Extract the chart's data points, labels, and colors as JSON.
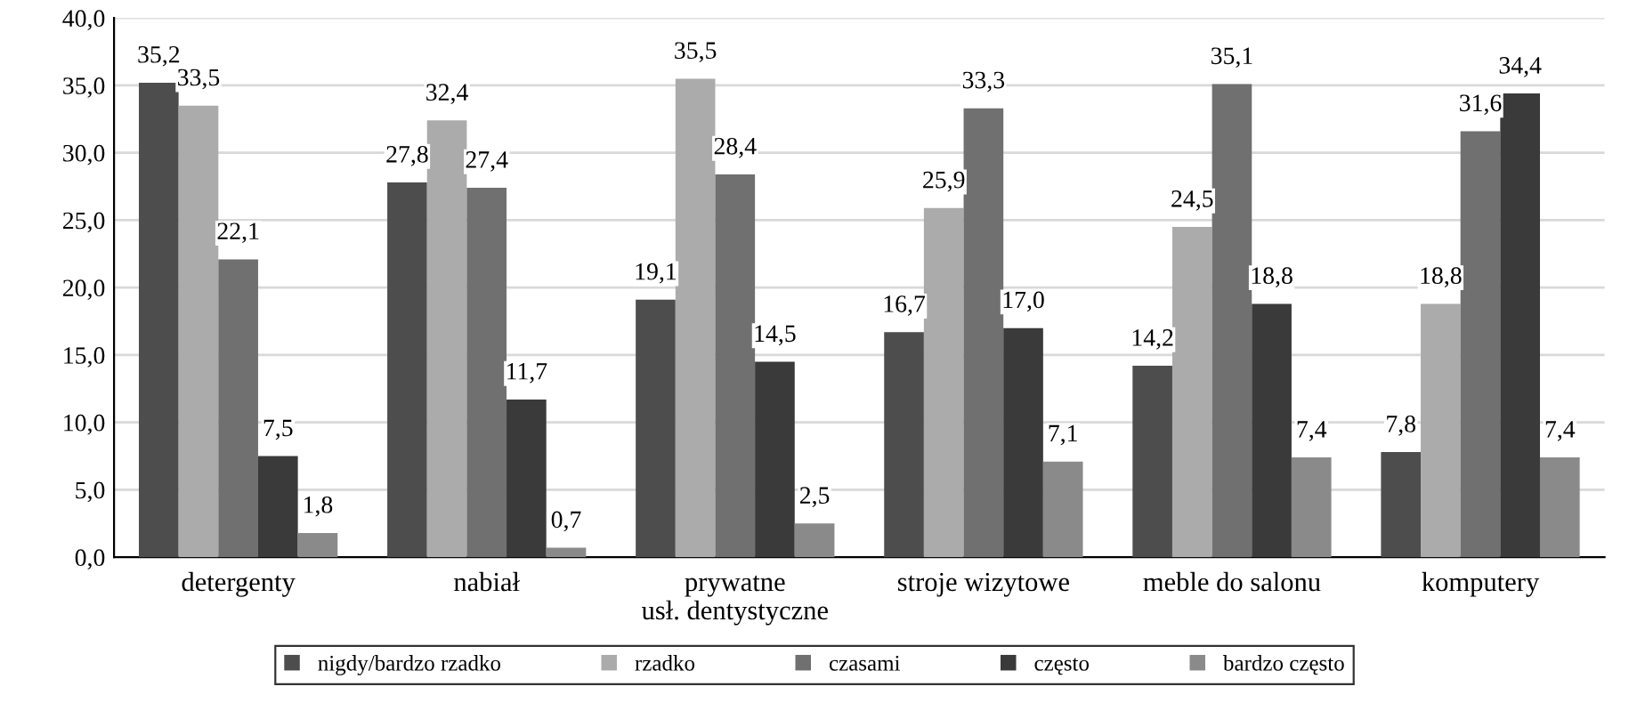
{
  "chart_data": {
    "type": "bar",
    "categories": [
      "detergenty",
      "nabiał",
      "prywatne\nusł. dentystyczne",
      "stroje wizytowe",
      "meble do salonu",
      "komputery"
    ],
    "series": [
      {
        "name": "nigdy/bardzo rzadko",
        "color": "#4d4d4d",
        "values": [
          35.2,
          27.8,
          19.1,
          16.7,
          14.2,
          7.8
        ],
        "value_labels": [
          "35,2",
          "27,8",
          "19,1",
          "16,7",
          "14,2",
          "7,8"
        ]
      },
      {
        "name": "rzadko",
        "color": "#ababab",
        "values": [
          33.5,
          32.4,
          35.5,
          25.9,
          24.5,
          18.8
        ],
        "value_labels": [
          "33,5",
          "32,4",
          "35,5",
          "25,9",
          "24,5",
          "18,8"
        ]
      },
      {
        "name": "czasami",
        "color": "#707070",
        "values": [
          22.1,
          27.4,
          28.4,
          33.3,
          35.1,
          31.6
        ],
        "value_labels": [
          "22,1",
          "27,4",
          "28,4",
          "33,3",
          "35,1",
          "31,6"
        ]
      },
      {
        "name": "często",
        "color": "#3a3a3a",
        "values": [
          7.5,
          11.7,
          14.5,
          17.0,
          18.8,
          34.4
        ],
        "value_labels": [
          "7,5",
          "11,7",
          "14,5",
          "17,0",
          "18,8",
          "34,4"
        ]
      },
      {
        "name": "bardzo często",
        "color": "#8a8a8a",
        "values": [
          1.8,
          0.7,
          2.5,
          7.1,
          7.4,
          7.4
        ],
        "value_labels": [
          "1,8",
          "0,7",
          "2,5",
          "7,1",
          "7,4",
          "7,4"
        ]
      }
    ],
    "ylim": [
      0,
      40
    ],
    "yticks": [
      {
        "value": 0,
        "label": "0,0"
      },
      {
        "value": 5,
        "label": "5,0"
      },
      {
        "value": 10,
        "label": "10,0"
      },
      {
        "value": 15,
        "label": "15,0"
      },
      {
        "value": 20,
        "label": "20,0"
      },
      {
        "value": 25,
        "label": "25,0"
      },
      {
        "value": 30,
        "label": "30,0"
      },
      {
        "value": 35,
        "label": "35,0"
      },
      {
        "value": 40,
        "label": "40,0"
      }
    ],
    "grid": "y",
    "legend": "bottom"
  }
}
